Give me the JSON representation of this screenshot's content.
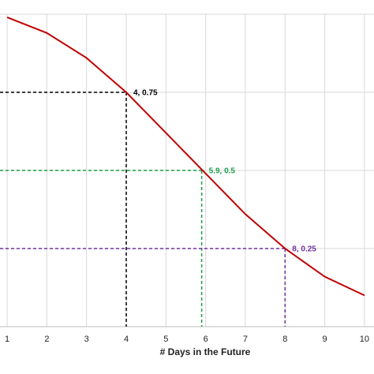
{
  "chart_data": {
    "type": "line",
    "x_label": "# Days in the Future",
    "x": [
      1,
      2,
      3,
      4,
      5,
      6,
      7,
      8,
      9,
      10
    ],
    "series": [
      {
        "color": "#c00000",
        "values": [
          0.99,
          0.94,
          0.86,
          0.75,
          0.62,
          0.49,
          0.36,
          0.25,
          0.16,
          0.1
        ]
      }
    ],
    "xlim": [
      0.82,
      10.24
    ],
    "ylim": [
      0,
      1
    ],
    "xticks": [
      1,
      2,
      3,
      4,
      5,
      6,
      7,
      8,
      9,
      10
    ],
    "yticks": [
      0,
      0.25,
      0.5,
      0.75,
      1
    ],
    "grid": true,
    "annotations": [
      {
        "x": 4,
        "y": 0.75,
        "label": "4, 0.75",
        "color": "#000000"
      },
      {
        "x": 5.9,
        "y": 0.5,
        "label": "5.9, 0.5",
        "color": "#1a9e4a"
      },
      {
        "x": 8,
        "y": 0.25,
        "label": "8, 0.25",
        "color": "#7030a0"
      }
    ]
  }
}
